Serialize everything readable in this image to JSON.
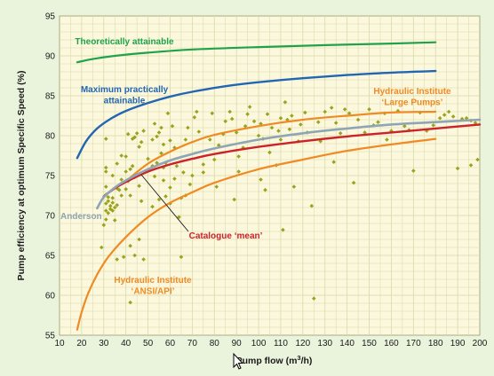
{
  "chart_data": {
    "type": "scatter",
    "xlabel": "Pump flow (m",
    "xlabel_sup": "3",
    "xlabel_tail": "/h)",
    "ylabel": "Pump efficiency at optimum Specific Speed (%)",
    "xlim": [
      10,
      200
    ],
    "ylim": [
      55,
      95
    ],
    "x_ticks": [
      10,
      20,
      30,
      40,
      50,
      60,
      70,
      80,
      90,
      100,
      110,
      120,
      130,
      140,
      150,
      160,
      170,
      180,
      190,
      200
    ],
    "y_ticks": [
      55,
      60,
      65,
      70,
      75,
      80,
      85,
      90,
      95
    ],
    "grid": true,
    "colors": {
      "background": "#eaf3dc",
      "plot_background": "#fbf8dd",
      "grid": "#d9d9a6",
      "points": "#9aa31e",
      "theoretical": "#1fa24a",
      "maximum": "#2266b3",
      "hi": "#f08a24",
      "catalogue": "#cc2229",
      "anderson": "#8fa5b6"
    },
    "series": [
      {
        "key": "theoretical",
        "name_lines": [
          "Theoretically attainable"
        ],
        "color": "#1fa24a",
        "x": [
          18,
          25,
          35,
          50,
          70,
          100,
          130,
          160,
          180
        ],
        "y": [
          89.2,
          89.6,
          90.0,
          90.4,
          90.8,
          91.1,
          91.35,
          91.55,
          91.7
        ]
      },
      {
        "key": "maximum",
        "name_lines": [
          "Maximum practically",
          "attainable"
        ],
        "color": "#2266b3",
        "x": [
          18,
          22,
          27,
          33,
          40,
          50,
          60,
          70,
          85,
          100,
          120,
          140,
          160,
          180
        ],
        "y": [
          77.2,
          79.3,
          80.9,
          82.1,
          83.1,
          84.1,
          84.9,
          85.5,
          86.2,
          86.7,
          87.2,
          87.6,
          87.9,
          88.1
        ]
      },
      {
        "key": "hi_large",
        "name_lines": [
          "Hydraulic Institute",
          "‘Large Pumps’"
        ],
        "color": "#f08a24",
        "x": [
          40,
          50,
          60,
          70,
          80,
          100,
          120,
          140,
          160,
          180
        ],
        "y": [
          74.3,
          76.5,
          78.0,
          79.2,
          80.1,
          81.2,
          82.0,
          82.5,
          82.9,
          83.0
        ]
      },
      {
        "key": "hi_ansi",
        "name_lines": [
          "Hydraulic Institute",
          "‘ANSI/API’"
        ],
        "color": "#f08a24",
        "x": [
          18,
          20,
          23,
          27,
          32,
          40,
          50,
          60,
          70,
          80,
          100,
          120,
          140,
          160,
          180
        ],
        "y": [
          55.7,
          57.9,
          60.3,
          62.6,
          64.8,
          67.3,
          69.8,
          71.6,
          72.9,
          74.1,
          75.8,
          77.0,
          78.1,
          78.9,
          79.6
        ]
      },
      {
        "key": "catalogue",
        "name_lines": [
          "Catalogue ‘mean’"
        ],
        "color": "#cc2229",
        "x": [
          30,
          35,
          40,
          50,
          60,
          70,
          80,
          100,
          120,
          140,
          160,
          180,
          200
        ],
        "y": [
          72.4,
          73.4,
          74.2,
          75.5,
          76.4,
          77.1,
          77.7,
          78.6,
          79.3,
          79.9,
          80.4,
          80.9,
          81.4
        ]
      },
      {
        "key": "anderson",
        "name_lines": [
          "Anderson"
        ],
        "color": "#8fa5b6",
        "x": [
          27,
          30,
          35,
          40,
          50,
          60,
          70,
          80,
          100,
          120,
          140,
          160,
          180,
          200
        ],
        "y": [
          70.9,
          72.3,
          73.5,
          74.4,
          75.8,
          76.9,
          77.7,
          78.4,
          79.5,
          80.3,
          80.9,
          81.4,
          81.7,
          82.0
        ]
      }
    ],
    "points": [
      [
        29,
        66
      ],
      [
        30,
        68.8
      ],
      [
        31,
        69.5
      ],
      [
        31,
        70.6
      ],
      [
        31,
        71.5
      ],
      [
        31,
        72.6
      ],
      [
        31,
        73.6
      ],
      [
        31,
        75.5
      ],
      [
        31,
        76
      ],
      [
        31,
        79.6
      ],
      [
        32,
        70.3
      ],
      [
        32,
        71.8
      ],
      [
        32,
        72.3
      ],
      [
        33,
        70.8
      ],
      [
        33,
        71.2
      ],
      [
        34,
        70.6
      ],
      [
        34,
        71.6
      ],
      [
        34,
        72.2
      ],
      [
        34,
        75
      ],
      [
        35,
        71
      ],
      [
        35,
        69.4
      ],
      [
        36,
        71.3
      ],
      [
        36,
        73.4
      ],
      [
        36,
        76.5
      ],
      [
        36,
        64.5
      ],
      [
        37,
        73.2
      ],
      [
        38,
        74.5
      ],
      [
        38,
        72.5
      ],
      [
        38,
        77.5
      ],
      [
        39,
        64.8
      ],
      [
        40,
        73.3
      ],
      [
        40,
        75.5
      ],
      [
        40,
        77.4
      ],
      [
        41,
        80.2
      ],
      [
        41,
        74.3
      ],
      [
        42,
        59.1
      ],
      [
        42,
        66.2
      ],
      [
        42,
        72.5
      ],
      [
        42,
        75.8
      ],
      [
        43,
        76.2
      ],
      [
        43,
        79.6
      ],
      [
        44,
        79.8
      ],
      [
        44,
        74.8
      ],
      [
        44,
        65
      ],
      [
        45,
        80.3
      ],
      [
        46,
        73.7
      ],
      [
        46,
        67
      ],
      [
        46,
        78.6
      ],
      [
        47,
        71.8
      ],
      [
        47,
        79.2
      ],
      [
        48,
        64.5
      ],
      [
        48,
        80.6
      ],
      [
        50,
        77.1
      ],
      [
        50,
        75.7
      ],
      [
        52,
        79.5
      ],
      [
        52,
        76.2
      ],
      [
        52,
        71.1
      ],
      [
        53,
        74.9
      ],
      [
        53,
        81.5
      ],
      [
        54,
        76.6
      ],
      [
        54,
        79.9
      ],
      [
        55,
        72
      ],
      [
        55,
        80.4
      ],
      [
        56,
        77.8
      ],
      [
        56,
        81
      ],
      [
        57,
        74.4
      ],
      [
        57,
        76
      ],
      [
        57,
        78.9
      ],
      [
        58,
        76.6
      ],
      [
        58,
        72.4
      ],
      [
        59,
        82.8
      ],
      [
        60,
        73.5
      ],
      [
        60,
        79.4
      ],
      [
        60,
        71.5
      ],
      [
        61,
        81.2
      ],
      [
        62,
        78.5
      ],
      [
        62,
        74.6
      ],
      [
        63,
        76.2
      ],
      [
        64,
        69.8
      ],
      [
        65,
        72.2
      ],
      [
        65,
        64.8
      ],
      [
        66,
        75.4
      ],
      [
        67,
        72.5
      ],
      [
        67,
        79.5
      ],
      [
        68,
        81
      ],
      [
        69,
        73.9
      ],
      [
        70,
        75
      ],
      [
        71,
        82.3
      ],
      [
        72,
        83
      ],
      [
        73,
        80.5
      ],
      [
        75,
        76.4
      ],
      [
        75,
        75.4
      ],
      [
        78,
        79.5
      ],
      [
        79,
        82.8
      ],
      [
        80,
        77
      ],
      [
        81,
        73.6
      ],
      [
        82,
        78.8
      ],
      [
        84,
        80.2
      ],
      [
        85,
        81.8
      ],
      [
        87,
        83
      ],
      [
        88,
        82.1
      ],
      [
        89,
        72
      ],
      [
        90,
        80.4
      ],
      [
        91,
        75.5
      ],
      [
        91,
        77.4
      ],
      [
        93,
        78.5
      ],
      [
        94,
        81.2
      ],
      [
        95,
        82.7
      ],
      [
        96,
        83.6
      ],
      [
        98,
        81.8
      ],
      [
        100,
        80
      ],
      [
        101,
        74.5
      ],
      [
        101,
        81.5
      ],
      [
        102,
        79.6
      ],
      [
        103,
        73.2
      ],
      [
        104,
        82.7
      ],
      [
        105,
        77.9
      ],
      [
        106,
        81
      ],
      [
        108,
        76.3
      ],
      [
        109,
        80.6
      ],
      [
        110,
        82.2
      ],
      [
        110,
        79.5
      ],
      [
        111,
        68.2
      ],
      [
        112,
        84.2
      ],
      [
        113,
        82
      ],
      [
        114,
        80.8
      ],
      [
        115,
        82.5
      ],
      [
        116,
        73.6
      ],
      [
        118,
        79.3
      ],
      [
        119,
        81.4
      ],
      [
        121,
        82.9
      ],
      [
        122,
        80.4
      ],
      [
        124,
        71.2
      ],
      [
        125,
        59.6
      ],
      [
        127,
        81.7
      ],
      [
        128,
        79.3
      ],
      [
        130,
        83
      ],
      [
        133,
        83.5
      ],
      [
        134,
        76.7
      ],
      [
        135,
        81.6
      ],
      [
        137,
        80.3
      ],
      [
        139,
        83.3
      ],
      [
        141,
        82.8
      ],
      [
        143,
        74.1
      ],
      [
        145,
        82
      ],
      [
        148,
        80.4
      ],
      [
        150,
        83.3
      ],
      [
        152,
        81.3
      ],
      [
        154,
        81.7
      ],
      [
        157,
        82.8
      ],
      [
        158,
        79.5
      ],
      [
        160,
        80.6
      ],
      [
        163,
        83.1
      ],
      [
        166,
        81.2
      ],
      [
        168,
        80.7
      ],
      [
        170,
        75.6
      ],
      [
        173,
        82.9
      ],
      [
        176,
        80.6
      ],
      [
        179,
        81.3
      ],
      [
        182,
        82.2
      ],
      [
        184,
        82.6
      ],
      [
        186,
        83
      ],
      [
        188,
        82.4
      ],
      [
        190,
        75.9
      ],
      [
        192,
        82.1
      ],
      [
        194,
        82.2
      ],
      [
        196,
        81.9
      ],
      [
        196,
        76.3
      ],
      [
        198,
        81.6
      ],
      [
        199,
        77
      ]
    ]
  }
}
